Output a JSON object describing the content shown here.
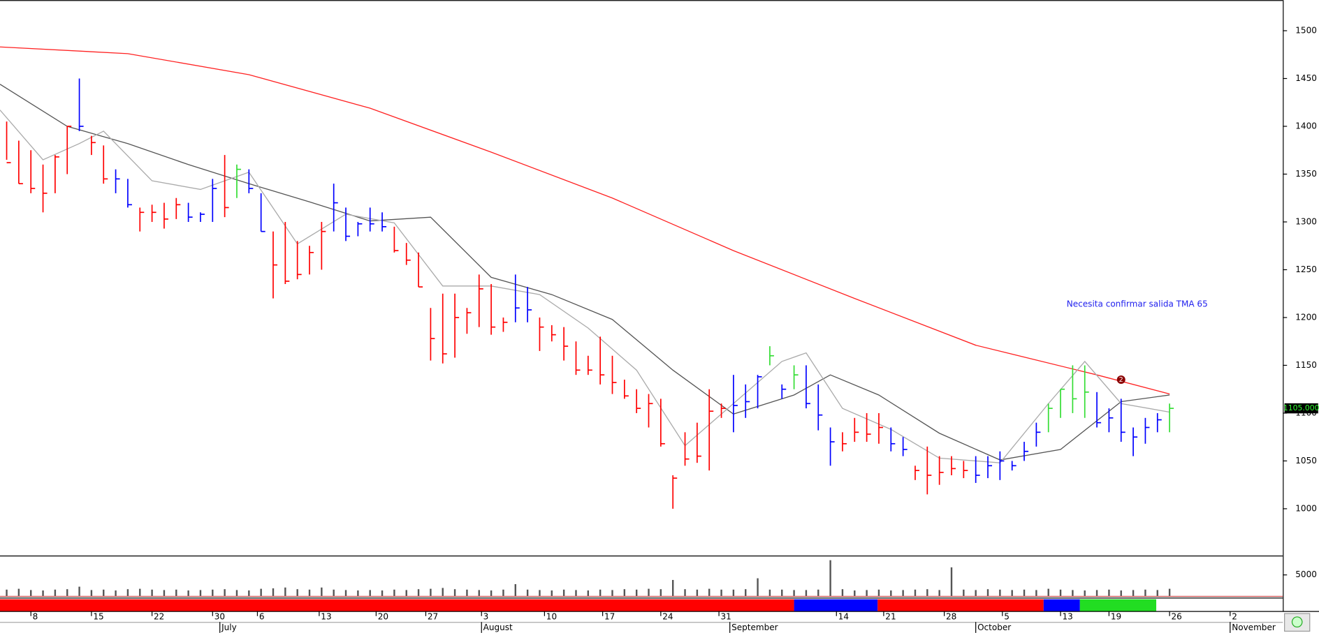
{
  "chart_data": {
    "type": "ohlc",
    "annotation": "Necesita confirmar salida TMA 65",
    "marker": {
      "label": "2",
      "x": 92,
      "y": 1135
    },
    "last_price": {
      "value": 1105,
      "label": "1105.000"
    },
    "xlim": [
      -0.55,
      105.35
    ],
    "ylim": [
      951,
      1532
    ],
    "yticks": [
      1000,
      1050,
      1100,
      1150,
      1200,
      1250,
      1300,
      1350,
      1400,
      1450,
      1500
    ],
    "xticks": [
      {
        "value": 2,
        "label": "8"
      },
      {
        "value": 7,
        "label": "15"
      },
      {
        "value": 12,
        "label": "22"
      },
      {
        "value": 17,
        "label": "30"
      },
      {
        "value": 20.7,
        "label": "6"
      },
      {
        "value": 25.8,
        "label": "13"
      },
      {
        "value": 30.5,
        "label": "20"
      },
      {
        "value": 34.6,
        "label": "27"
      },
      {
        "value": 39.2,
        "label": "3"
      },
      {
        "value": 44.4,
        "label": "10"
      },
      {
        "value": 49.2,
        "label": "17"
      },
      {
        "value": 54,
        "label": "24"
      },
      {
        "value": 58.8,
        "label": "31"
      },
      {
        "value": 68.5,
        "label": "14"
      },
      {
        "value": 72.4,
        "label": "21"
      },
      {
        "value": 77.4,
        "label": "28"
      },
      {
        "value": 82.2,
        "label": "5"
      },
      {
        "value": 87,
        "label": "13"
      },
      {
        "value": 91,
        "label": "19"
      },
      {
        "value": 96,
        "label": "26"
      },
      {
        "value": 101,
        "label": "2"
      }
    ],
    "month_labels": [
      {
        "value": 17.6,
        "label": "July"
      },
      {
        "value": 39.2,
        "label": "August"
      },
      {
        "value": 59.7,
        "label": "September"
      },
      {
        "value": 80,
        "label": "October"
      },
      {
        "value": 101,
        "label": "November"
      }
    ],
    "bars": {
      "high": [
        1405,
        1385,
        1375,
        1360,
        1370,
        1400,
        1450,
        1390,
        1380,
        1355,
        1345,
        1315,
        1318,
        1320,
        1325,
        1320,
        1310,
        1345,
        1370,
        1360,
        1355,
        1330,
        1290,
        1300,
        1280,
        1275,
        1300,
        1340,
        1315,
        1300,
        1315,
        1310,
        1295,
        1278,
        1268,
        1210,
        1225,
        1225,
        1210,
        1245,
        1235,
        1200,
        1245,
        1232,
        1200,
        1192,
        1190,
        1175,
        1160,
        1180,
        1160,
        1135,
        1125,
        1120,
        1115,
        1035,
        1080,
        1090,
        1125,
        1110,
        1140,
        1130,
        1140,
        1170,
        1130,
        1150,
        1150,
        1130,
        1085,
        1080,
        1095,
        1100,
        1100,
        1085,
        1075,
        1045,
        1065,
        1055,
        1055,
        1050,
        1055,
        1055,
        1060,
        1050,
        1070,
        1090,
        1110,
        1125,
        1150,
        1150,
        1122,
        1105,
        1115,
        1085,
        1095,
        1100,
        1110
      ],
      "low": [
        1365,
        1340,
        1330,
        1310,
        1330,
        1350,
        1395,
        1370,
        1340,
        1330,
        1315,
        1290,
        1300,
        1293,
        1303,
        1300,
        1300,
        1300,
        1305,
        1325,
        1330,
        1290,
        1220,
        1235,
        1240,
        1245,
        1250,
        1290,
        1280,
        1285,
        1290,
        1290,
        1268,
        1255,
        1232,
        1155,
        1152,
        1158,
        1183,
        1190,
        1182,
        1185,
        1195,
        1195,
        1165,
        1175,
        1155,
        1140,
        1140,
        1130,
        1120,
        1115,
        1100,
        1085,
        1065,
        1000,
        1045,
        1048,
        1040,
        1095,
        1080,
        1095,
        1105,
        1150,
        1115,
        1125,
        1105,
        1082,
        1045,
        1060,
        1070,
        1070,
        1068,
        1060,
        1055,
        1030,
        1015,
        1025,
        1035,
        1032,
        1027,
        1032,
        1030,
        1040,
        1050,
        1065,
        1080,
        1095,
        1100,
        1095,
        1085,
        1080,
        1070,
        1055,
        1068,
        1080,
        1080
      ],
      "close": [
        1362,
        1340,
        1335,
        1330,
        1368,
        1400,
        1400,
        1383,
        1345,
        1345,
        1318,
        1310,
        1310,
        1303,
        1318,
        1305,
        1308,
        1335,
        1315,
        1355,
        1335,
        1290,
        1255,
        1238,
        1245,
        1268,
        1290,
        1320,
        1285,
        1298,
        1298,
        1295,
        1270,
        1260,
        1232,
        1178,
        1162,
        1200,
        1205,
        1230,
        1190,
        1195,
        1210,
        1208,
        1190,
        1182,
        1170,
        1145,
        1145,
        1140,
        1132,
        1118,
        1105,
        1110,
        1068,
        1032,
        1052,
        1055,
        1102,
        1105,
        1108,
        1112,
        1138,
        1160,
        1125,
        1140,
        1110,
        1098,
        1070,
        1068,
        1080,
        1078,
        1085,
        1068,
        1062,
        1040,
        1035,
        1038,
        1042,
        1040,
        1035,
        1045,
        1050,
        1045,
        1060,
        1080,
        1105,
        1125,
        1115,
        1122,
        1090,
        1095,
        1080,
        1075,
        1085,
        1093,
        1105
      ],
      "colors": [
        "#ff0000",
        "#ff0000",
        "#ff0000",
        "#ff0000",
        "#ff0000",
        "#ff0000",
        "#0000ff",
        "#ff0000",
        "#ff0000",
        "#0000ff",
        "#0000ff",
        "#ff0000",
        "#ff0000",
        "#ff0000",
        "#ff0000",
        "#0000ff",
        "#0000ff",
        "#0000ff",
        "#ff0000",
        "#33dd33",
        "#0000ff",
        "#0000ff",
        "#ff0000",
        "#ff0000",
        "#ff0000",
        "#ff0000",
        "#ff0000",
        "#0000ff",
        "#0000ff",
        "#0000ff",
        "#0000ff",
        "#0000ff",
        "#ff0000",
        "#ff0000",
        "#ff0000",
        "#ff0000",
        "#ff0000",
        "#ff0000",
        "#ff0000",
        "#ff0000",
        "#ff0000",
        "#ff0000",
        "#0000ff",
        "#0000ff",
        "#ff0000",
        "#ff0000",
        "#ff0000",
        "#ff0000",
        "#ff0000",
        "#ff0000",
        "#ff0000",
        "#ff0000",
        "#ff0000",
        "#ff0000",
        "#ff0000",
        "#ff0000",
        "#ff0000",
        "#ff0000",
        "#ff0000",
        "#ff0000",
        "#0000ff",
        "#0000ff",
        "#0000ff",
        "#33dd33",
        "#0000ff",
        "#33dd33",
        "#0000ff",
        "#0000ff",
        "#0000ff",
        "#ff0000",
        "#ff0000",
        "#ff0000",
        "#ff0000",
        "#0000ff",
        "#0000ff",
        "#ff0000",
        "#ff0000",
        "#ff0000",
        "#ff0000",
        "#ff0000",
        "#0000ff",
        "#0000ff",
        "#0000ff",
        "#0000ff",
        "#0000ff",
        "#0000ff",
        "#33dd33",
        "#33dd33",
        "#33dd33",
        "#33dd33",
        "#0000ff",
        "#0000ff",
        "#0000ff",
        "#0000ff",
        "#0000ff",
        "#0000ff",
        "#33dd33"
      ]
    },
    "ma": [
      {
        "color": "#ff2222",
        "x": [
          -0.55,
          10,
          20,
          30,
          40,
          50,
          60,
          70,
          80,
          90,
          96
        ],
        "values": [
          1483,
          1476,
          1454,
          1419,
          1373,
          1325,
          1270,
          1220,
          1171,
          1140,
          1120
        ]
      },
      {
        "color": "#555555",
        "x": [
          -0.55,
          5,
          10,
          15,
          20,
          25,
          30,
          35,
          40,
          45,
          50,
          55,
          60,
          65,
          68,
          72,
          77,
          82,
          87,
          92,
          96
        ],
        "values": [
          1444,
          1400,
          1382,
          1360,
          1340,
          1321,
          1301,
          1305,
          1242,
          1224,
          1198,
          1145,
          1099,
          1119,
          1140,
          1119,
          1079,
          1051,
          1062,
          1112,
          1119
        ]
      },
      {
        "color": "#aaaaaa",
        "x": [
          -0.55,
          3,
          6,
          8,
          12,
          16,
          20,
          24,
          28,
          32,
          36,
          40,
          44,
          48,
          52,
          56,
          60,
          64,
          66,
          69,
          73,
          77,
          82,
          86,
          89,
          92,
          96
        ],
        "values": [
          1417,
          1365,
          1382,
          1395,
          1343,
          1334,
          1352,
          1277,
          1308,
          1299,
          1233,
          1233,
          1224,
          1189,
          1145,
          1066,
          1110,
          1154,
          1163,
          1105,
          1083,
          1053,
          1048,
          1110,
          1154,
          1110,
          1101
        ]
      }
    ],
    "volume": {
      "color": "#555555",
      "ylim": [
        0,
        9200
      ],
      "yticks": [
        5000
      ],
      "values": [
        1500,
        1700,
        1400,
        1300,
        1500,
        1600,
        2200,
        1400,
        1500,
        1300,
        1600,
        1700,
        1500,
        1400,
        1500,
        1300,
        1400,
        1500,
        1600,
        1400,
        1300,
        1700,
        1800,
        2000,
        1600,
        1500,
        2000,
        1500,
        1400,
        1300,
        1400,
        1300,
        1500,
        1400,
        1600,
        1700,
        1900,
        1600,
        1500,
        1400,
        1300,
        1500,
        2800,
        1500,
        1400,
        1300,
        1500,
        1400,
        1300,
        1500,
        1400,
        1600,
        1500,
        1700,
        1600,
        3800,
        1600,
        1500,
        1700,
        1500,
        1500,
        1600,
        4200,
        1500,
        1500,
        1400,
        1400,
        1500,
        8500,
        1600,
        1300,
        1400,
        1500,
        1300,
        1400,
        1500,
        1600,
        1400,
        6800,
        1500,
        1400,
        1600,
        1500,
        1400,
        1500,
        1400,
        1700,
        1500,
        1400,
        1300,
        1400,
        1500,
        1300,
        1400,
        1500,
        1400,
        1700
      ]
    },
    "signal_bands": [
      {
        "start": -0.55,
        "end": 65,
        "color": "#ff0000"
      },
      {
        "start": 65,
        "end": 71.9,
        "color": "#0000ff"
      },
      {
        "start": 71.9,
        "end": 85.6,
        "color": "#ff0000"
      },
      {
        "start": 85.6,
        "end": 88.6,
        "color": "#0000ff"
      },
      {
        "start": 88.6,
        "end": 94.9,
        "color": "#22dd22"
      }
    ]
  }
}
